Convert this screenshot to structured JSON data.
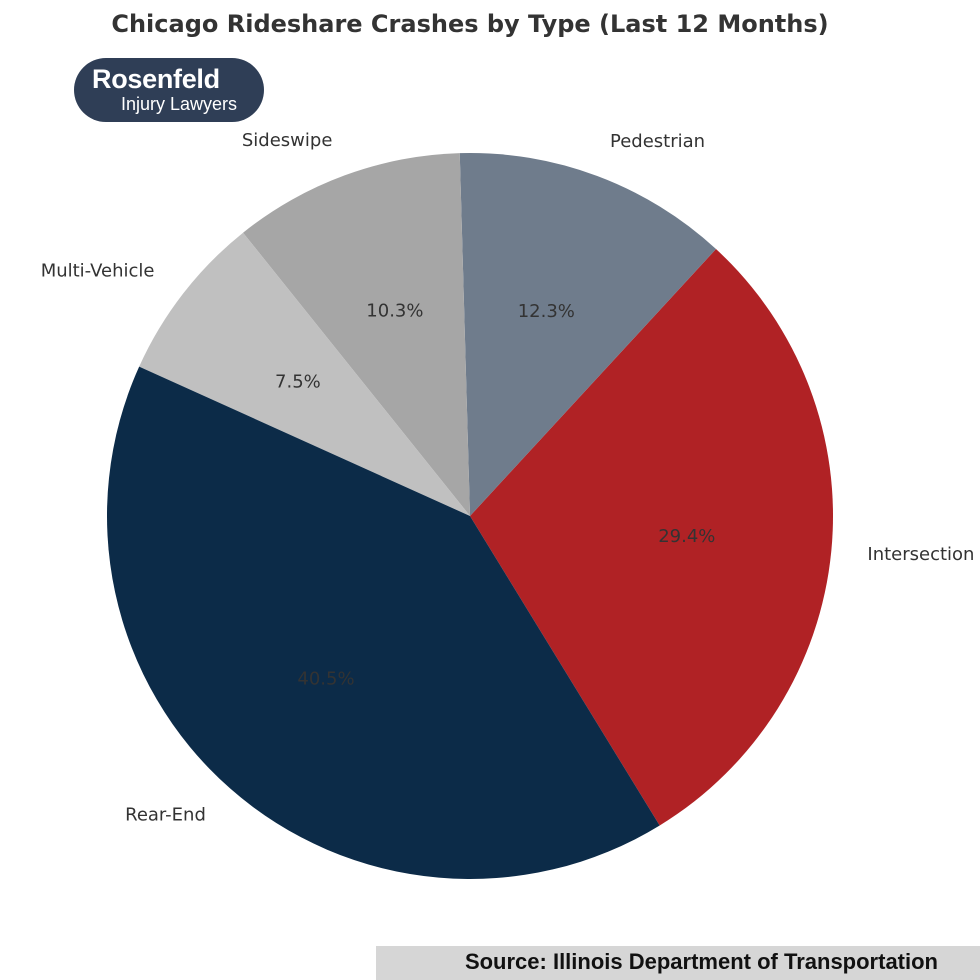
{
  "chart_data": {
    "type": "pie",
    "title": "Chicago Rideshare Crashes by Type (Last 12 Months)",
    "slices": [
      {
        "label": "Intersection",
        "value": 29.4,
        "pct_label": "29.4%",
        "color": "#b02225"
      },
      {
        "label": "Pedestrian",
        "value": 12.3,
        "pct_label": "12.3%",
        "color": "#6f7c8c"
      },
      {
        "label": "Sideswipe",
        "value": 10.3,
        "pct_label": "10.3%",
        "color": "#a6a6a6"
      },
      {
        "label": "Multi-Vehicle",
        "value": 7.5,
        "pct_label": "7.5%",
        "color": "#c0c0c0"
      },
      {
        "label": "Rear-End",
        "value": 40.5,
        "pct_label": "40.5%",
        "color": "#0c2b48"
      }
    ],
    "start_angle_deg": -58.5,
    "direction": "counterclockwise"
  },
  "logo": {
    "name": "Rosenfeld",
    "tagline": "Injury Lawyers",
    "bg_color": "#2f3e56"
  },
  "source": "Source: Illinois Department of Transportation"
}
